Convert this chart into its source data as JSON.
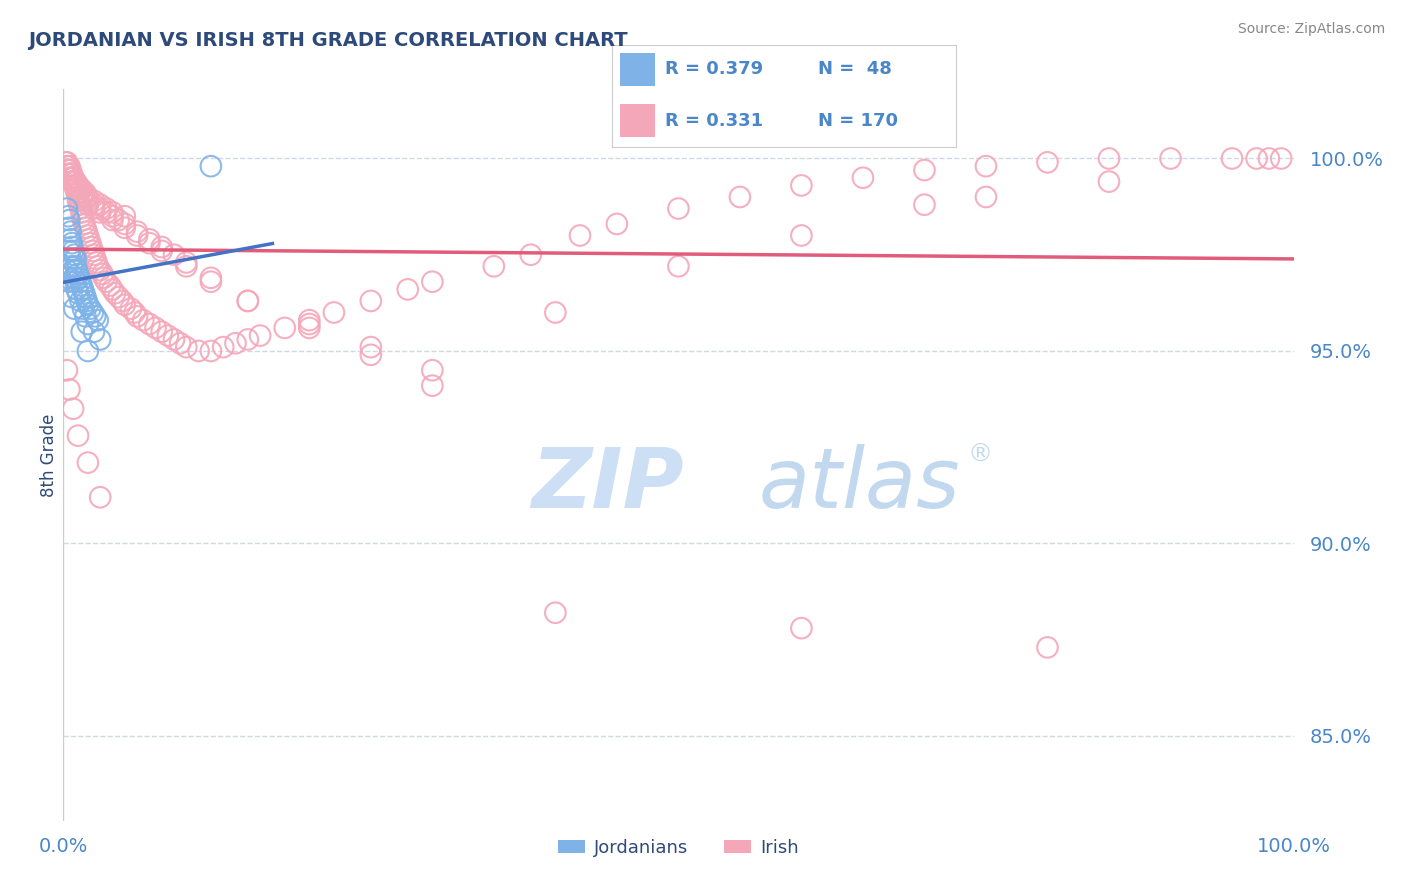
{
  "title": "JORDANIAN VS IRISH 8TH GRADE CORRELATION CHART",
  "source_text": "Source: ZipAtlas.com",
  "ylabel": "8th Grade",
  "xlim": [
    0.0,
    1.0
  ],
  "ylim": [
    0.828,
    1.018
  ],
  "yticks": [
    0.85,
    0.9,
    0.95,
    1.0
  ],
  "ytick_labels": [
    "85.0%",
    "90.0%",
    "95.0%",
    "100.0%"
  ],
  "jordanian_color": "#7fb3e8",
  "irish_color": "#f4a7b9",
  "trend_jordan_color": "#4472c4",
  "trend_irish_color": "#e05c7a",
  "background_color": "#ffffff",
  "watermark_color": "#ccdff5",
  "title_color": "#2e4a7a",
  "axis_label_color": "#2e4a7a",
  "tick_label_color": "#4a86c8",
  "legend_r_color": "#2e4a7a",
  "grid_color": "#d0d8e8",
  "jordanian_x": [
    0.003,
    0.004,
    0.005,
    0.005,
    0.006,
    0.006,
    0.007,
    0.007,
    0.008,
    0.009,
    0.01,
    0.01,
    0.011,
    0.012,
    0.013,
    0.014,
    0.015,
    0.016,
    0.017,
    0.018,
    0.019,
    0.02,
    0.022,
    0.024,
    0.026,
    0.028,
    0.005,
    0.006,
    0.007,
    0.008,
    0.009,
    0.01,
    0.011,
    0.012,
    0.014,
    0.016,
    0.018,
    0.02,
    0.025,
    0.03,
    0.003,
    0.004,
    0.005,
    0.007,
    0.009,
    0.015,
    0.02,
    0.12
  ],
  "jordanian_y": [
    0.987,
    0.985,
    0.984,
    0.982,
    0.981,
    0.979,
    0.978,
    0.977,
    0.976,
    0.975,
    0.974,
    0.972,
    0.971,
    0.97,
    0.969,
    0.968,
    0.967,
    0.966,
    0.965,
    0.964,
    0.963,
    0.962,
    0.961,
    0.96,
    0.959,
    0.958,
    0.976,
    0.974,
    0.972,
    0.971,
    0.969,
    0.968,
    0.966,
    0.965,
    0.963,
    0.961,
    0.959,
    0.957,
    0.955,
    0.953,
    0.971,
    0.969,
    0.968,
    0.964,
    0.961,
    0.955,
    0.95,
    0.998
  ],
  "irish_x": [
    0.002,
    0.003,
    0.004,
    0.005,
    0.005,
    0.006,
    0.006,
    0.007,
    0.007,
    0.008,
    0.008,
    0.009,
    0.009,
    0.01,
    0.01,
    0.011,
    0.012,
    0.012,
    0.013,
    0.014,
    0.015,
    0.015,
    0.016,
    0.017,
    0.018,
    0.019,
    0.02,
    0.021,
    0.022,
    0.023,
    0.024,
    0.025,
    0.026,
    0.027,
    0.028,
    0.03,
    0.032,
    0.033,
    0.035,
    0.038,
    0.04,
    0.042,
    0.045,
    0.048,
    0.05,
    0.055,
    0.058,
    0.06,
    0.065,
    0.07,
    0.075,
    0.08,
    0.085,
    0.09,
    0.095,
    0.1,
    0.11,
    0.12,
    0.13,
    0.14,
    0.15,
    0.16,
    0.18,
    0.2,
    0.22,
    0.25,
    0.28,
    0.3,
    0.35,
    0.38,
    0.42,
    0.45,
    0.5,
    0.55,
    0.6,
    0.65,
    0.7,
    0.75,
    0.8,
    0.85,
    0.9,
    0.95,
    0.97,
    0.98,
    0.99,
    0.003,
    0.004,
    0.006,
    0.008,
    0.01,
    0.012,
    0.015,
    0.018,
    0.02,
    0.025,
    0.03,
    0.035,
    0.04,
    0.05,
    0.003,
    0.005,
    0.007,
    0.009,
    0.011,
    0.013,
    0.015,
    0.018,
    0.02,
    0.025,
    0.03,
    0.04,
    0.05,
    0.06,
    0.07,
    0.08,
    0.1,
    0.12,
    0.15,
    0.2,
    0.25,
    0.3,
    0.004,
    0.006,
    0.008,
    0.01,
    0.012,
    0.014,
    0.016,
    0.018,
    0.02,
    0.025,
    0.03,
    0.035,
    0.04,
    0.045,
    0.05,
    0.06,
    0.07,
    0.08,
    0.09,
    0.1,
    0.12,
    0.15,
    0.2,
    0.25,
    0.3,
    0.4,
    0.5,
    0.6,
    0.7,
    0.75,
    0.85,
    0.003,
    0.005,
    0.008,
    0.012,
    0.02,
    0.03,
    0.4,
    0.6,
    0.8
  ],
  "irish_y": [
    0.999,
    0.999,
    0.998,
    0.998,
    0.997,
    0.997,
    0.996,
    0.996,
    0.995,
    0.995,
    0.994,
    0.994,
    0.993,
    0.993,
    0.992,
    0.991,
    0.99,
    0.989,
    0.988,
    0.987,
    0.986,
    0.985,
    0.984,
    0.983,
    0.982,
    0.981,
    0.98,
    0.979,
    0.978,
    0.977,
    0.976,
    0.975,
    0.974,
    0.973,
    0.972,
    0.971,
    0.97,
    0.969,
    0.968,
    0.967,
    0.966,
    0.965,
    0.964,
    0.963,
    0.962,
    0.961,
    0.96,
    0.959,
    0.958,
    0.957,
    0.956,
    0.955,
    0.954,
    0.953,
    0.952,
    0.951,
    0.95,
    0.95,
    0.951,
    0.952,
    0.953,
    0.954,
    0.956,
    0.958,
    0.96,
    0.963,
    0.966,
    0.968,
    0.972,
    0.975,
    0.98,
    0.983,
    0.987,
    0.99,
    0.993,
    0.995,
    0.997,
    0.998,
    0.999,
    1.0,
    1.0,
    1.0,
    1.0,
    1.0,
    1.0,
    0.998,
    0.997,
    0.996,
    0.995,
    0.994,
    0.993,
    0.992,
    0.991,
    0.99,
    0.989,
    0.988,
    0.987,
    0.986,
    0.985,
    0.996,
    0.995,
    0.994,
    0.993,
    0.992,
    0.991,
    0.99,
    0.989,
    0.988,
    0.987,
    0.986,
    0.984,
    0.982,
    0.98,
    0.978,
    0.976,
    0.972,
    0.968,
    0.963,
    0.957,
    0.951,
    0.945,
    0.997,
    0.996,
    0.995,
    0.994,
    0.993,
    0.992,
    0.991,
    0.99,
    0.989,
    0.988,
    0.987,
    0.986,
    0.985,
    0.984,
    0.983,
    0.981,
    0.979,
    0.977,
    0.975,
    0.973,
    0.969,
    0.963,
    0.956,
    0.949,
    0.941,
    0.96,
    0.972,
    0.98,
    0.988,
    0.99,
    0.994,
    0.945,
    0.94,
    0.935,
    0.928,
    0.921,
    0.912,
    0.882,
    0.878,
    0.873
  ]
}
